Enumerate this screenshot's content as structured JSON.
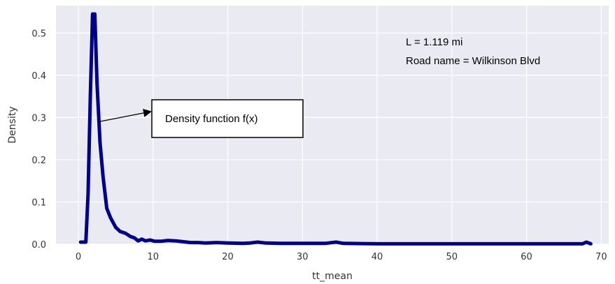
{
  "chart_data": {
    "type": "line",
    "title": "",
    "xlabel": "tt_mean",
    "ylabel": "Density",
    "xlim": [
      -3,
      71
    ],
    "ylim": [
      0,
      0.565
    ],
    "xticks": [
      0,
      10,
      20,
      30,
      40,
      50,
      60,
      70
    ],
    "yticks": [
      0.0,
      0.1,
      0.2,
      0.3,
      0.4,
      0.5
    ],
    "grid": true,
    "series": [
      {
        "color": "#00008b",
        "points": [
          [
            0.3,
            0.005
          ],
          [
            1.0,
            0.005
          ],
          [
            1.3,
            0.12
          ],
          [
            1.6,
            0.35
          ],
          [
            1.9,
            0.545
          ],
          [
            2.2,
            0.545
          ],
          [
            2.5,
            0.38
          ],
          [
            2.9,
            0.24
          ],
          [
            3.3,
            0.16
          ],
          [
            3.8,
            0.085
          ],
          [
            4.3,
            0.063
          ],
          [
            5.0,
            0.04
          ],
          [
            5.6,
            0.03
          ],
          [
            6.3,
            0.026
          ],
          [
            7.0,
            0.018
          ],
          [
            7.5,
            0.015
          ],
          [
            8.0,
            0.008
          ],
          [
            8.5,
            0.012
          ],
          [
            9.0,
            0.008
          ],
          [
            9.6,
            0.01
          ],
          [
            10.2,
            0.007
          ],
          [
            11.0,
            0.007
          ],
          [
            12.0,
            0.009
          ],
          [
            13.0,
            0.008
          ],
          [
            14.0,
            0.006
          ],
          [
            15.0,
            0.004
          ],
          [
            16.0,
            0.004
          ],
          [
            17.0,
            0.003
          ],
          [
            18.5,
            0.004
          ],
          [
            20.0,
            0.003
          ],
          [
            22.0,
            0.002
          ],
          [
            23.0,
            0.003
          ],
          [
            24.0,
            0.005
          ],
          [
            25.0,
            0.003
          ],
          [
            27.0,
            0.002
          ],
          [
            30.0,
            0.002
          ],
          [
            33.0,
            0.002
          ],
          [
            34.5,
            0.005
          ],
          [
            35.5,
            0.002
          ],
          [
            40.0,
            0.001
          ],
          [
            50.0,
            0.001
          ],
          [
            60.0,
            0.001
          ],
          [
            67.5,
            0.001
          ],
          [
            68.0,
            0.005
          ],
          [
            68.6,
            0.001
          ]
        ]
      }
    ],
    "annotations": {
      "info_line1": "L = 1.119 mi",
      "info_line2": "Road name = Wilkinson Blvd",
      "callout_label": "Density function f(x)",
      "arrow_target": [
        2.7,
        0.29
      ]
    },
    "colors": {
      "plot_background": "#eaeaf2",
      "grid": "#ffffff",
      "line": "#00008b"
    }
  }
}
